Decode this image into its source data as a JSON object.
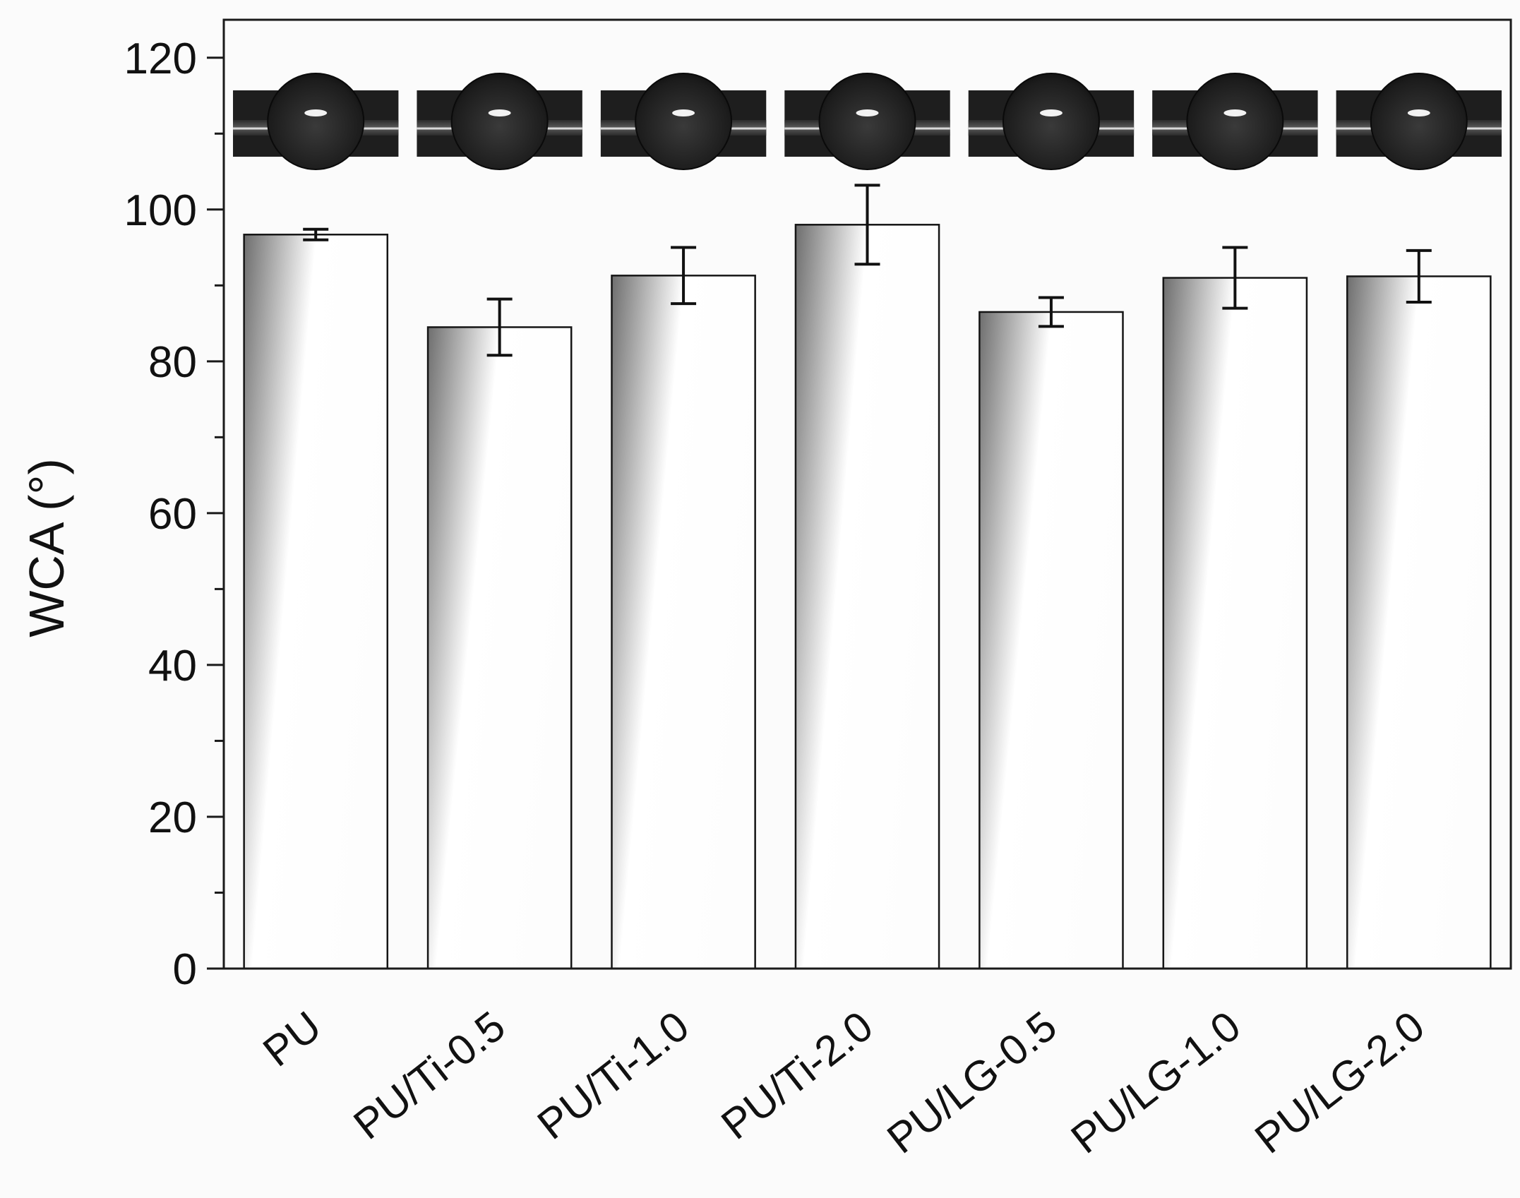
{
  "chart_data": {
    "type": "bar",
    "categories": [
      "PU",
      "PU/Ti-0.5",
      "PU/Ti-1.0",
      "PU/Ti-2.0",
      "PU/LG-0.5",
      "PU/LG-1.0",
      "PU/LG-2.0"
    ],
    "values": [
      96.7,
      84.5,
      91.3,
      98.0,
      86.5,
      91.0,
      91.2
    ],
    "errors": [
      0.7,
      3.7,
      3.7,
      5.2,
      1.9,
      4.0,
      3.4
    ],
    "xlabel": "",
    "ylabel": "WCA (°)",
    "ylim": [
      0,
      125
    ],
    "yticks": [
      0,
      20,
      40,
      60,
      80,
      100,
      120
    ],
    "grid": false,
    "legend": "none",
    "inset_images": "water-droplet photographs above each bar",
    "colors": {
      "bar_dark": "#6e6e6e",
      "bar_light": "#ffffff",
      "axis": "#1a1a1a"
    }
  }
}
